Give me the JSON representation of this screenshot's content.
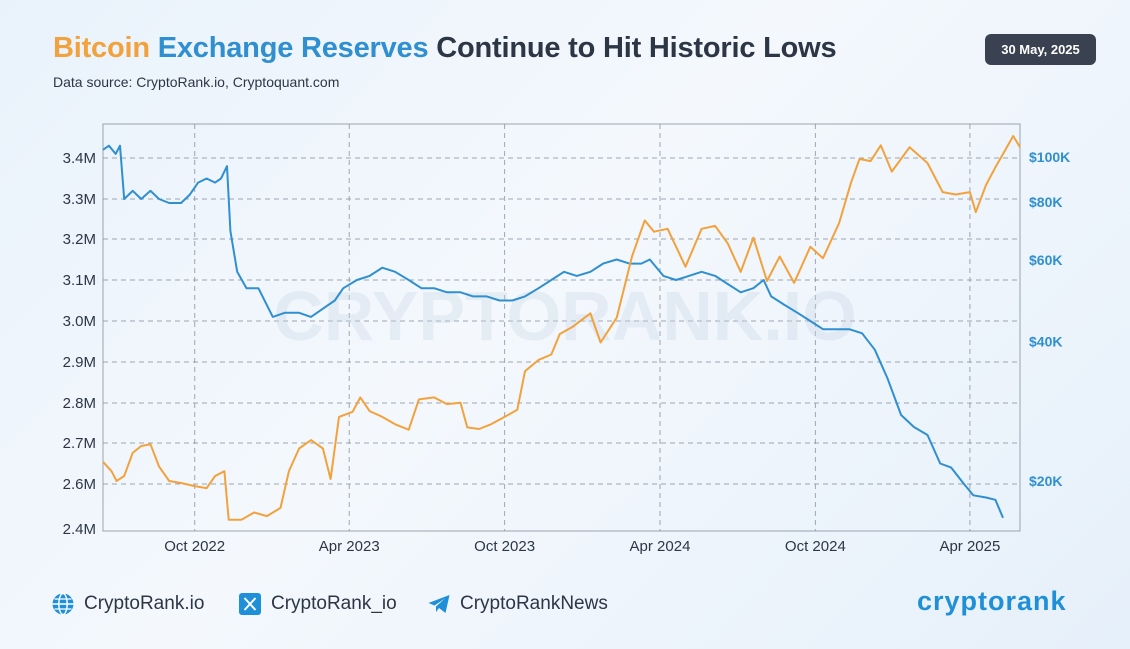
{
  "header": {
    "title_parts": [
      {
        "text": "Bitcoin",
        "color": "#f2a23c"
      },
      {
        "text": "Exchange Reserves",
        "color": "#2f8fd0"
      },
      {
        "text": "Continue to Hit Historic Lows",
        "color": "#2c3645"
      }
    ],
    "subtitle": "Data source: CryptoRank.io, Cryptoquant.com",
    "date": "30 May, 2025"
  },
  "watermark": "CRYPTORANK.IO",
  "footer": {
    "website": "CryptoRank.io",
    "x_handle": "CryptoRank_io",
    "telegram": "CryptoRankNews",
    "brand": "cryptorank"
  },
  "colors": {
    "reserves": "#2f8fd0",
    "price": "#f2a23c",
    "text": "#2c3645",
    "brand": "#1f8fd8"
  },
  "chart_data": {
    "type": "line",
    "title": "Bitcoin Exchange Reserves Continue to Hit Historic Lows",
    "grid": true,
    "x_ticks": [
      "Oct 2022",
      "Apr 2023",
      "Oct 2023",
      "Apr 2024",
      "Oct 2024",
      "Apr 2025"
    ],
    "x_range": [
      "2022-06-15",
      "2025-05-30"
    ],
    "y_left": {
      "ticks": [
        "3.4M",
        "3.3M",
        "3.2M",
        "3.1M",
        "3.0M",
        "2.9M",
        "2.8M",
        "2.7M",
        "2.6M",
        "2.4M"
      ],
      "tick_values": [
        3.4,
        3.3,
        3.2,
        3.1,
        3.0,
        2.9,
        2.8,
        2.7,
        2.6,
        2.4
      ],
      "unit": "M BTC"
    },
    "y_right": {
      "ticks": [
        "$100K",
        "$80K",
        "$60K",
        "$40K",
        "$20K"
      ],
      "tick_values": [
        100000,
        80000,
        60000,
        40000,
        20000
      ]
    },
    "series": [
      {
        "key": "reserves",
        "color": "#2f8fd0",
        "axis": "left",
        "points": [
          [
            "2022-06-15",
            3.42
          ],
          [
            "2022-06-22",
            3.43
          ],
          [
            "2022-06-30",
            3.41
          ],
          [
            "2022-07-05",
            3.43
          ],
          [
            "2022-07-10",
            3.3
          ],
          [
            "2022-07-20",
            3.32
          ],
          [
            "2022-07-30",
            3.3
          ],
          [
            "2022-08-10",
            3.32
          ],
          [
            "2022-08-20",
            3.3
          ],
          [
            "2022-09-01",
            3.29
          ],
          [
            "2022-09-15",
            3.29
          ],
          [
            "2022-09-25",
            3.31
          ],
          [
            "2022-10-05",
            3.34
          ],
          [
            "2022-10-15",
            3.35
          ],
          [
            "2022-10-25",
            3.34
          ],
          [
            "2022-11-01",
            3.35
          ],
          [
            "2022-11-08",
            3.38
          ],
          [
            "2022-11-12",
            3.22
          ],
          [
            "2022-11-20",
            3.12
          ],
          [
            "2022-12-01",
            3.08
          ],
          [
            "2022-12-15",
            3.08
          ],
          [
            "2023-01-01",
            3.01
          ],
          [
            "2023-01-15",
            3.02
          ],
          [
            "2023-02-01",
            3.02
          ],
          [
            "2023-02-15",
            3.01
          ],
          [
            "2023-03-01",
            3.03
          ],
          [
            "2023-03-15",
            3.05
          ],
          [
            "2023-03-25",
            3.08
          ],
          [
            "2023-04-10",
            3.1
          ],
          [
            "2023-04-25",
            3.11
          ],
          [
            "2023-05-10",
            3.13
          ],
          [
            "2023-05-25",
            3.12
          ],
          [
            "2023-06-10",
            3.1
          ],
          [
            "2023-06-25",
            3.08
          ],
          [
            "2023-07-10",
            3.08
          ],
          [
            "2023-07-25",
            3.07
          ],
          [
            "2023-08-10",
            3.07
          ],
          [
            "2023-08-25",
            3.06
          ],
          [
            "2023-09-10",
            3.06
          ],
          [
            "2023-09-25",
            3.05
          ],
          [
            "2023-10-10",
            3.05
          ],
          [
            "2023-10-25",
            3.06
          ],
          [
            "2023-11-10",
            3.08
          ],
          [
            "2023-11-25",
            3.1
          ],
          [
            "2023-12-10",
            3.12
          ],
          [
            "2023-12-25",
            3.11
          ],
          [
            "2024-01-10",
            3.12
          ],
          [
            "2024-01-25",
            3.14
          ],
          [
            "2024-02-10",
            3.15
          ],
          [
            "2024-02-25",
            3.14
          ],
          [
            "2024-03-10",
            3.14
          ],
          [
            "2024-03-20",
            3.15
          ],
          [
            "2024-04-05",
            3.11
          ],
          [
            "2024-04-20",
            3.1
          ],
          [
            "2024-05-05",
            3.11
          ],
          [
            "2024-05-20",
            3.12
          ],
          [
            "2024-06-05",
            3.11
          ],
          [
            "2024-06-20",
            3.09
          ],
          [
            "2024-07-05",
            3.07
          ],
          [
            "2024-07-20",
            3.08
          ],
          [
            "2024-08-01",
            3.1
          ],
          [
            "2024-08-10",
            3.06
          ],
          [
            "2024-08-25",
            3.04
          ],
          [
            "2024-09-10",
            3.02
          ],
          [
            "2024-09-25",
            3.0
          ],
          [
            "2024-10-10",
            2.98
          ],
          [
            "2024-10-25",
            2.98
          ],
          [
            "2024-11-10",
            2.98
          ],
          [
            "2024-11-25",
            2.97
          ],
          [
            "2024-12-10",
            2.93
          ],
          [
            "2024-12-25",
            2.86
          ],
          [
            "2025-01-10",
            2.77
          ],
          [
            "2025-01-25",
            2.74
          ],
          [
            "2025-02-10",
            2.72
          ],
          [
            "2025-02-25",
            2.65
          ],
          [
            "2025-03-10",
            2.64
          ],
          [
            "2025-03-25",
            2.6
          ],
          [
            "2025-04-05",
            2.55
          ],
          [
            "2025-04-20",
            2.54
          ],
          [
            "2025-05-01",
            2.53
          ],
          [
            "2025-05-10",
            2.45
          ]
        ]
      },
      {
        "key": "price",
        "color": "#f2a23c",
        "axis": "right",
        "points": [
          [
            "2022-06-15",
            22000
          ],
          [
            "2022-06-25",
            21000
          ],
          [
            "2022-07-01",
            20000
          ],
          [
            "2022-07-10",
            20500
          ],
          [
            "2022-07-20",
            23000
          ],
          [
            "2022-07-30",
            23800
          ],
          [
            "2022-08-10",
            24000
          ],
          [
            "2022-08-20",
            21500
          ],
          [
            "2022-09-01",
            20000
          ],
          [
            "2022-09-15",
            19800
          ],
          [
            "2022-10-01",
            19500
          ],
          [
            "2022-10-15",
            19300
          ],
          [
            "2022-10-25",
            20500
          ],
          [
            "2022-11-05",
            21000
          ],
          [
            "2022-11-10",
            16500
          ],
          [
            "2022-11-25",
            16500
          ],
          [
            "2022-12-10",
            17100
          ],
          [
            "2022-12-25",
            16800
          ],
          [
            "2023-01-10",
            17500
          ],
          [
            "2023-01-20",
            21000
          ],
          [
            "2023-02-01",
            23500
          ],
          [
            "2023-02-15",
            24500
          ],
          [
            "2023-03-01",
            23500
          ],
          [
            "2023-03-10",
            20200
          ],
          [
            "2023-03-20",
            27500
          ],
          [
            "2023-04-05",
            28200
          ],
          [
            "2023-04-14",
            30300
          ],
          [
            "2023-04-25",
            28300
          ],
          [
            "2023-05-10",
            27500
          ],
          [
            "2023-05-25",
            26500
          ],
          [
            "2023-06-10",
            25800
          ],
          [
            "2023-06-22",
            30000
          ],
          [
            "2023-07-10",
            30300
          ],
          [
            "2023-07-25",
            29300
          ],
          [
            "2023-08-10",
            29500
          ],
          [
            "2023-08-18",
            26100
          ],
          [
            "2023-09-01",
            25900
          ],
          [
            "2023-09-15",
            26500
          ],
          [
            "2023-10-01",
            27500
          ],
          [
            "2023-10-16",
            28500
          ],
          [
            "2023-10-25",
            34500
          ],
          [
            "2023-11-10",
            36500
          ],
          [
            "2023-11-25",
            37500
          ],
          [
            "2023-12-05",
            41500
          ],
          [
            "2023-12-20",
            43000
          ],
          [
            "2024-01-10",
            46000
          ],
          [
            "2024-01-22",
            39800
          ],
          [
            "2024-02-10",
            45000
          ],
          [
            "2024-02-28",
            61000
          ],
          [
            "2024-03-14",
            73000
          ],
          [
            "2024-03-25",
            69000
          ],
          [
            "2024-04-10",
            70000
          ],
          [
            "2024-04-20",
            64000
          ],
          [
            "2024-05-01",
            58000
          ],
          [
            "2024-05-20",
            70000
          ],
          [
            "2024-06-05",
            71000
          ],
          [
            "2024-06-20",
            65000
          ],
          [
            "2024-07-05",
            56500
          ],
          [
            "2024-07-20",
            67000
          ],
          [
            "2024-08-05",
            54000
          ],
          [
            "2024-08-20",
            61000
          ],
          [
            "2024-09-06",
            53500
          ],
          [
            "2024-09-25",
            64000
          ],
          [
            "2024-10-10",
            60500
          ],
          [
            "2024-10-29",
            72000
          ],
          [
            "2024-11-12",
            88000
          ],
          [
            "2024-11-22",
            99000
          ],
          [
            "2024-12-05",
            98000
          ],
          [
            "2024-12-17",
            106000
          ],
          [
            "2024-12-30",
            93000
          ],
          [
            "2025-01-20",
            105000
          ],
          [
            "2025-02-10",
            97000
          ],
          [
            "2025-02-28",
            84000
          ],
          [
            "2025-03-15",
            83000
          ],
          [
            "2025-04-01",
            84000
          ],
          [
            "2025-04-08",
            76000
          ],
          [
            "2025-04-20",
            87000
          ],
          [
            "2025-05-01",
            95000
          ],
          [
            "2025-05-12",
            103000
          ],
          [
            "2025-05-22",
            111000
          ],
          [
            "2025-05-30",
            105000
          ]
        ]
      }
    ]
  }
}
